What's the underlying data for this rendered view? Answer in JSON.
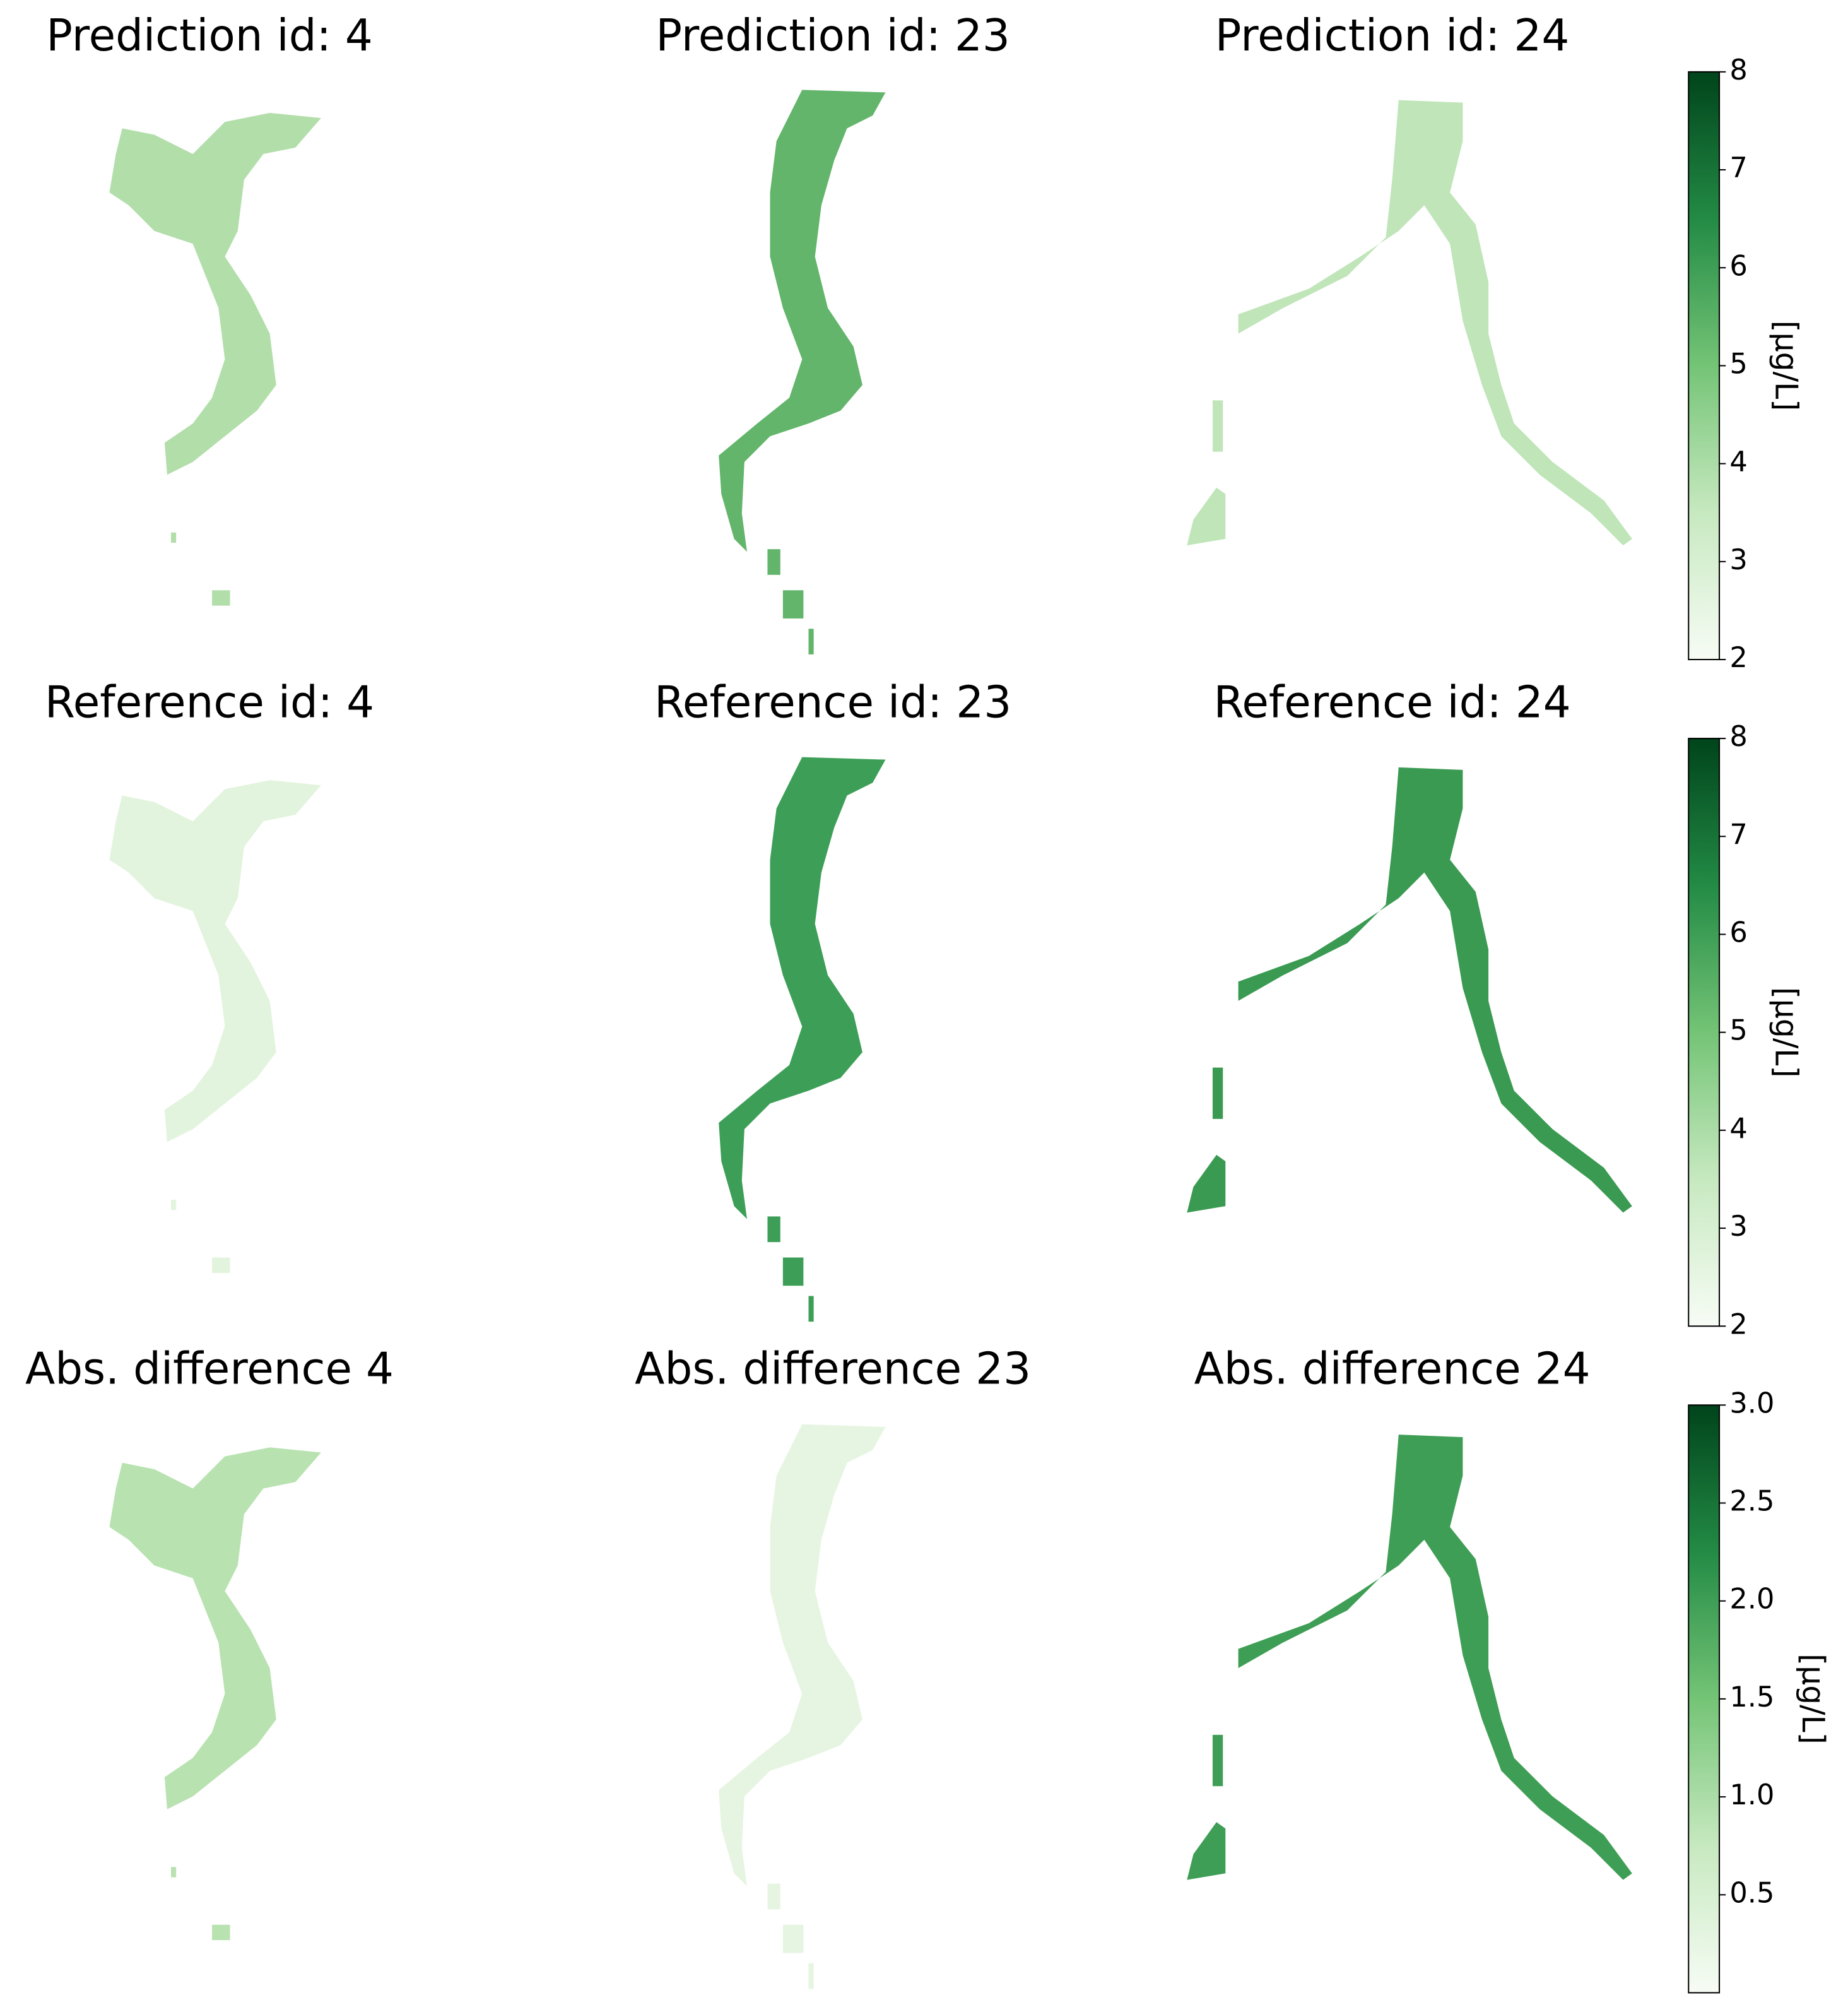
{
  "chart_data": [
    {
      "type": "colorbar",
      "panel_titles": [
        "Prediction id: 4",
        "Prediction id: 23",
        "Prediction id: 24"
      ],
      "ylim": [
        2,
        8
      ],
      "yticks": [
        2,
        3,
        4,
        5,
        6,
        7,
        8
      ],
      "y_label": "[µg/L]"
    },
    {
      "type": "colorbar",
      "panel_titles": [
        "Reference id: 4",
        "Reference id: 23",
        "Reference id: 24"
      ],
      "ylim": [
        2,
        8
      ],
      "yticks": [
        2,
        3,
        4,
        5,
        6,
        7,
        8
      ],
      "y_label": "[µg/L]"
    },
    {
      "type": "colorbar",
      "panel_titles": [
        "Abs. difference 4",
        "Abs. difference 23",
        "Abs. difference 24"
      ],
      "ylim": [
        0,
        3
      ],
      "yticks": [
        0.5,
        {
          "value": 1,
          "label": "1.0"
        },
        1.5,
        {
          "value": 2,
          "label": "2.0"
        },
        2.5,
        {
          "value": 3,
          "label": "3.0"
        }
      ],
      "y_label": "[µg/L]"
    }
  ]
}
